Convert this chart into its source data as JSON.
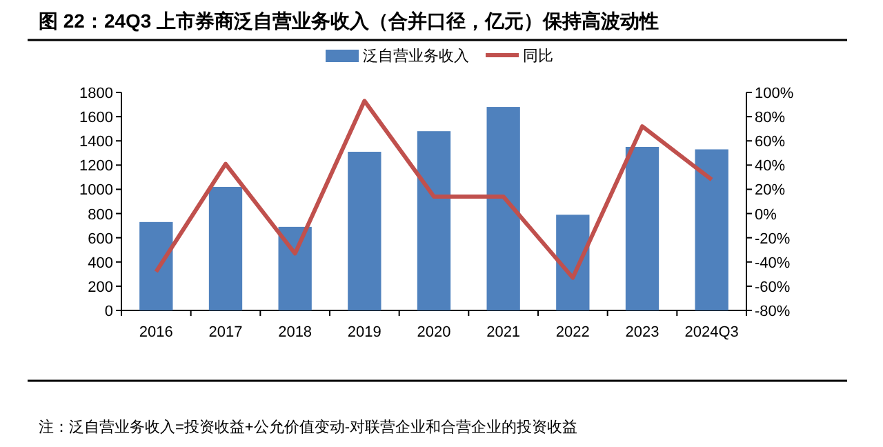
{
  "chart_data": {
    "type": "bar",
    "title": "图 22：24Q3 上市券商泛自营业务收入（合并口径，亿元）保持高波动性",
    "categories": [
      "2016",
      "2017",
      "2018",
      "2019",
      "2020",
      "2021",
      "2022",
      "2023",
      "2024Q3"
    ],
    "series": [
      {
        "name": "泛自营业务收入",
        "color": "#4f81bd",
        "values": [
          730,
          1020,
          690,
          1310,
          1480,
          1680,
          790,
          1350,
          1330
        ]
      },
      {
        "name": "同比",
        "color": "#c0504d",
        "type": "line",
        "axis": "y2",
        "values": [
          -48,
          41,
          -33,
          93,
          14,
          14,
          -53,
          72,
          28
        ]
      }
    ],
    "ylim": [
      0,
      1800
    ],
    "yticks": [
      0,
      200,
      400,
      600,
      800,
      1000,
      1200,
      1400,
      1600,
      1800
    ],
    "y2lim": [
      -80,
      100
    ],
    "y2ticks": [
      {
        "value": -80,
        "label": "-80%"
      },
      {
        "value": -60,
        "label": "-60%"
      },
      {
        "value": -40,
        "label": "-40%"
      },
      {
        "value": -20,
        "label": "-20%"
      },
      {
        "value": 0,
        "label": "0%"
      },
      {
        "value": 20,
        "label": "20%"
      },
      {
        "value": 40,
        "label": "40%"
      },
      {
        "value": 60,
        "label": "60%"
      },
      {
        "value": 80,
        "label": "80%"
      },
      {
        "value": 100,
        "label": "100%"
      }
    ],
    "legend": "top",
    "grid": false,
    "marker": "none",
    "annotations": [
      "注：泛自营业务收入=投资收益+公允价值变动-对联营企业和合营企业的投资收益"
    ]
  }
}
